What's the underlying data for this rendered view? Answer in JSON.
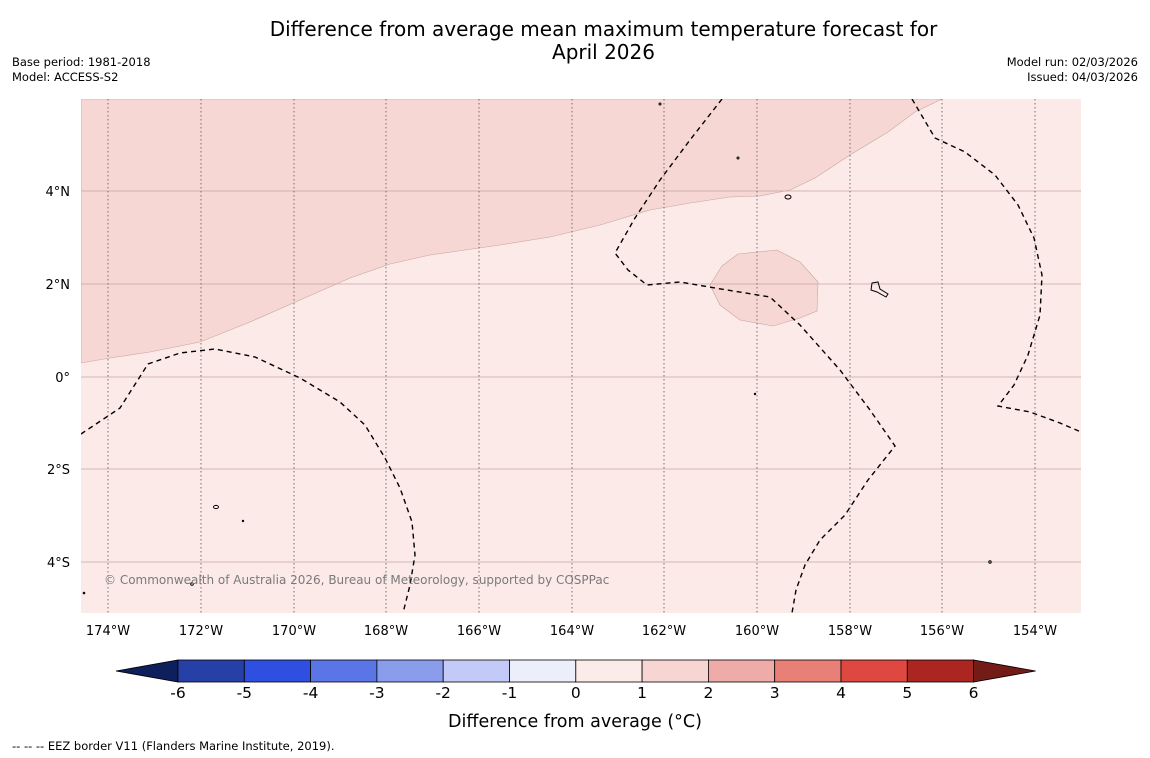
{
  "title": {
    "line1": "Difference from average mean maximum temperature forecast for",
    "line2": "April 2026"
  },
  "meta_left": {
    "base_period": "Base period: 1981-2018",
    "model": "Model: ACCESS-S2"
  },
  "meta_right": {
    "model_run": "Model run: 02/03/2026",
    "issued": "Issued: 04/03/2026"
  },
  "map": {
    "copyright": "© Commonwealth of Australia 2026, Bureau of Meteorology, supported by COSPPac",
    "latitude_labels": [
      "4°N",
      "2°N",
      "0°",
      "2°S",
      "4°S"
    ],
    "longitude_labels": [
      "174°W",
      "172°W",
      "170°W",
      "168°W",
      "166°W",
      "164°W",
      "162°W",
      "160°W",
      "158°W",
      "156°W",
      "154°W"
    ],
    "background_anomaly_range": "0 to 1",
    "warm_region_anomaly_range": "1 to 2"
  },
  "colorbar": {
    "title": "Difference from average (°C)",
    "tick_labels": [
      "-6",
      "-5",
      "-4",
      "-3",
      "-2",
      "-1",
      "0",
      "1",
      "2",
      "3",
      "4",
      "5",
      "6"
    ],
    "colors": [
      "#0f1f5c",
      "#2740a8",
      "#2e4fe0",
      "#5a75e6",
      "#8a9ded",
      "#c4caf7",
      "#eceff9",
      "#fbecea",
      "#f7d5d2",
      "#eeaba7",
      "#e88078",
      "#de4840",
      "#ab2620",
      "#731b17"
    ]
  },
  "footnote": "-- -- -- EEZ border V11 (Flanders Marine Institute, 2019)."
}
